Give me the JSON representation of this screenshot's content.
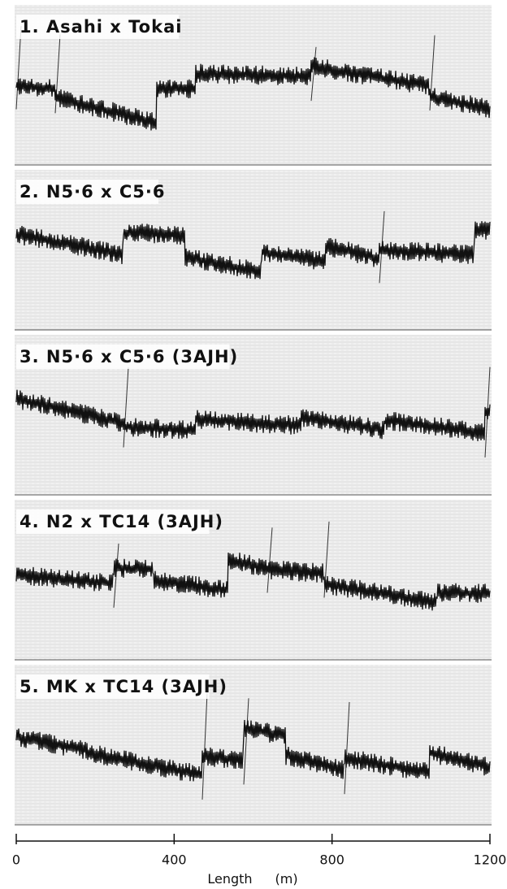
{
  "chart_data": {
    "type": "line",
    "panels": [
      {
        "title": "1. Asahi x Tokai"
      },
      {
        "title": "2. N5·6 x C5·6"
      },
      {
        "title": "3. N5·6 x C5·6 (3AJH)"
      },
      {
        "title": "4. N2 x TC14 (3AJH)"
      },
      {
        "title": "5. MK x TC14 (3AJH)"
      }
    ],
    "xlabel": "Length",
    "xunit": "(m)",
    "xlim": [
      0,
      1200
    ],
    "xticks": [
      0,
      400,
      800,
      1200
    ]
  }
}
